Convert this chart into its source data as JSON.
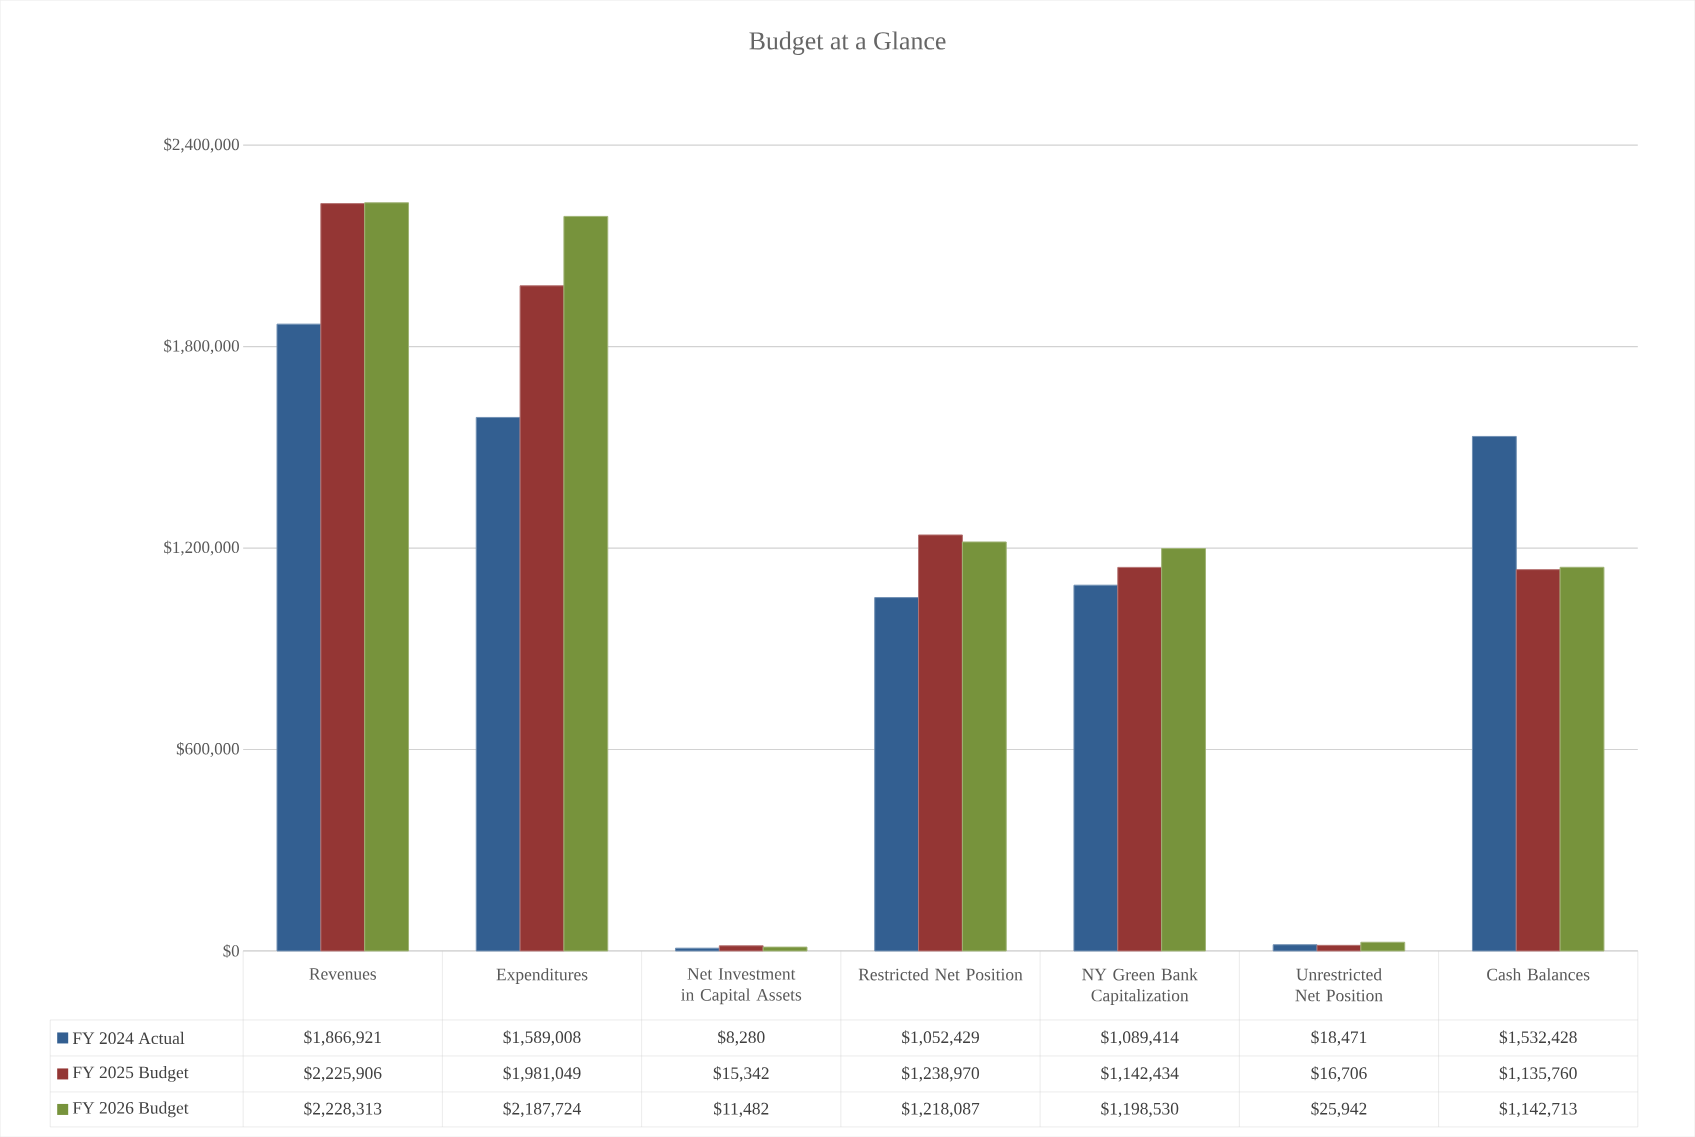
{
  "chart_data": {
    "type": "bar",
    "title": "Budget at a Glance",
    "categories": [
      "Revenues",
      "Expenditures",
      "Net Investment in Capital Assets",
      "Restricted Net Position",
      "NY Green Bank Capitalization",
      "Unrestricted Net Position",
      "Cash Balances"
    ],
    "series": [
      {
        "name": "FY 2024 Actual",
        "color": "#335f91",
        "values": [
          1866921,
          1589008,
          8280,
          1052429,
          1089414,
          18471,
          1532428
        ],
        "value_labels": [
          "$1,866,921",
          "$1,589,008",
          "$8,280",
          "$1,052,429",
          "$1,089,414",
          "$18,471",
          "$1,532,428"
        ]
      },
      {
        "name": "FY 2025 Budget",
        "color": "#943634",
        "values": [
          2225906,
          1981049,
          15342,
          1238970,
          1142434,
          16706,
          1135760
        ],
        "value_labels": [
          "$2,225,906",
          "$1,981,049",
          "$15,342",
          "$1,238,970",
          "$1,142,434",
          "$16,706",
          "$1,135,760"
        ]
      },
      {
        "name": "FY 2026 Budget",
        "color": "#77933c",
        "values": [
          2228313,
          2187724,
          11482,
          1218087,
          1198530,
          25942,
          1142713
        ],
        "value_labels": [
          "$2,228,313",
          "$2,187,724",
          "$11,482",
          "$1,218,087",
          "$1,198,530",
          "$25,942",
          "$1,142,713"
        ]
      }
    ],
    "ylim": [
      0,
      2400000
    ],
    "yticks": [
      {
        "value": 0,
        "label": "$0"
      },
      {
        "value": 600000,
        "label": "$600,000"
      },
      {
        "value": 1200000,
        "label": "$1,200,000"
      },
      {
        "value": 1800000,
        "label": "$1,800,000"
      },
      {
        "value": 2400000,
        "label": "$2,400,000"
      }
    ],
    "grid": "y",
    "legend": "bottom"
  }
}
